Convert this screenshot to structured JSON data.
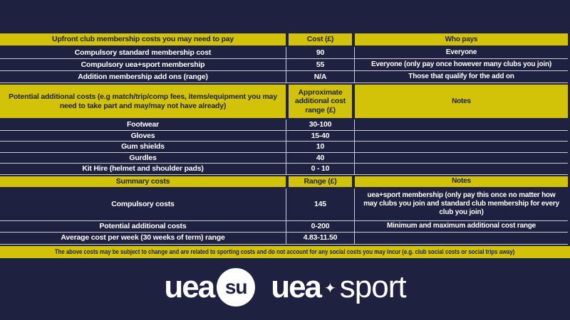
{
  "theme": {
    "background": "#1e2240",
    "accent_yellow": "#d2c208",
    "separator_white": "#ccccd6",
    "text_light": "#ffffff",
    "text_dark": "#1e2240"
  },
  "table": {
    "rows": [
      {
        "type": "header",
        "cells": [
          "Upfront club membership costs you may need to pay",
          "Cost (£)",
          "Who pays"
        ]
      },
      {
        "type": "data",
        "cells": [
          "Compulsory standard membership cost",
          "90",
          "Everyone"
        ]
      },
      {
        "type": "data",
        "cells": [
          "Compulsory uea+sport membership",
          "55",
          "Everyone (only pay once however many clubs you join)"
        ]
      },
      {
        "type": "data",
        "cells": [
          "Addition membership add ons (range)",
          "N/A",
          "Those that qualify for the add on"
        ]
      },
      {
        "type": "header",
        "cells": [
          "Potential additional costs (e.g match/trip/comp fees, items/equipment you may need to take part and may/may not have already)",
          "Approximate additional cost range (£)",
          "Notes"
        ]
      },
      {
        "type": "data",
        "cells": [
          "Footwear",
          "30-100",
          ""
        ]
      },
      {
        "type": "data",
        "cells": [
          "Gloves",
          "15-40",
          ""
        ]
      },
      {
        "type": "data",
        "cells": [
          "Gum shields",
          "10",
          ""
        ]
      },
      {
        "type": "data",
        "cells": [
          "Gurdles",
          "40",
          ""
        ]
      },
      {
        "type": "data",
        "cells": [
          "Kit Hire (helmet and shoulder pads)",
          "0 - 10",
          ""
        ]
      },
      {
        "type": "header",
        "cells": [
          "Summary costs",
          "Range (£)",
          "Notes"
        ]
      },
      {
        "type": "data",
        "cells": [
          "Compulsory costs",
          "145",
          "uea+sport membership (only pay this once no matter how may clubs you join and standard club membership for every club you join)"
        ]
      },
      {
        "type": "data",
        "cells": [
          "Potential additional costs",
          "0-200",
          "Minimum and maximum additional cost range"
        ]
      },
      {
        "type": "data",
        "cells": [
          "Average cost per week (30 weeks of term) range",
          "4.83-11.50",
          ""
        ]
      }
    ]
  },
  "footer_note": "The above costs may be subject to change and are related to sporting costs and do not account for any social costs you may incur (e.g. club social costs or social trips away)",
  "logos": {
    "ueasu_prefix": "uea",
    "ueasu_badge": "su",
    "sport_prefix": "uea",
    "sport_star": "✦",
    "sport_suffix": "sport"
  }
}
